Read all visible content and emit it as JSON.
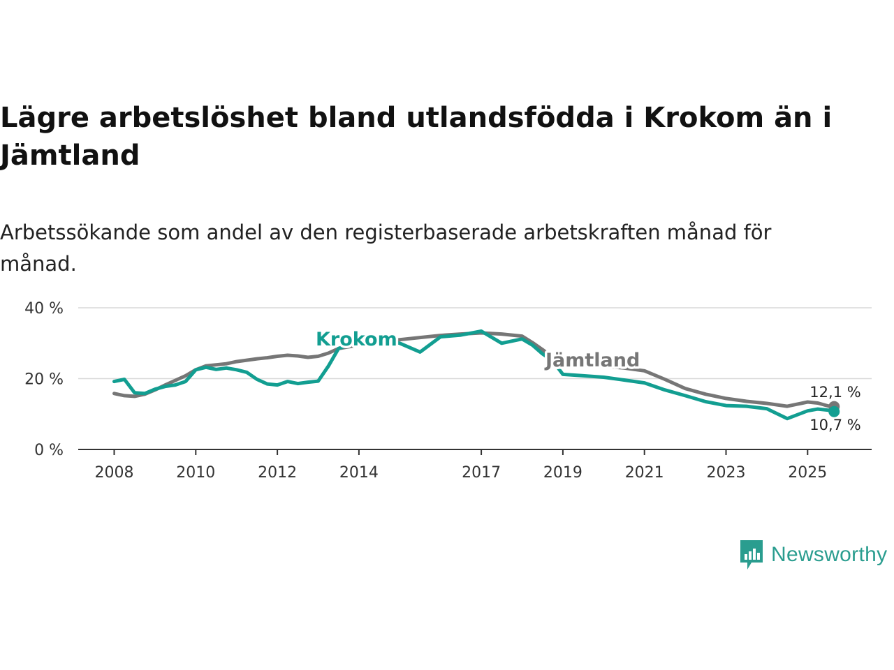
{
  "title": "Lägre arbetslöshet bland utlandsfödda i Krokom än i Jämtland",
  "subtitle": "Arbetssökande som andel av den registerbaserade arbetskraften månad för månad.",
  "brand": {
    "name": "Newsworthy"
  },
  "colors": {
    "krokom": "#129e91",
    "jamtland": "#767676",
    "grid": "#d9d9d9",
    "axis": "#333333"
  },
  "chart_data": {
    "type": "line",
    "title": "Lägre arbetslöshet bland utlandsfödda i Krokom än i Jämtland",
    "xlabel": "",
    "ylabel": "",
    "xlim": [
      2008.0,
      2026.5
    ],
    "ylim": [
      0,
      40
    ],
    "x_ticks": [
      2008,
      2010,
      2012,
      2014,
      2017,
      2019,
      2021,
      2023,
      2025
    ],
    "x_tick_labels": [
      "2008",
      "2010",
      "2012",
      "2014",
      "2017",
      "2019",
      "2021",
      "2023",
      "2025"
    ],
    "y_ticks": [
      0,
      20,
      40
    ],
    "y_tick_labels": [
      "0 %",
      "20 %",
      "40 %"
    ],
    "grid": true,
    "series": [
      {
        "name": "Jämtland",
        "label": "Jämtland",
        "end_label": "12,1 %",
        "x": [
          2008.0,
          2008.25,
          2008.5,
          2008.75,
          2009.0,
          2009.25,
          2009.5,
          2009.75,
          2010.0,
          2010.25,
          2010.5,
          2010.75,
          2011.0,
          2011.25,
          2011.5,
          2011.75,
          2012.0,
          2012.25,
          2012.5,
          2012.75,
          2013.0,
          2013.25,
          2013.5,
          2014.0,
          2014.5,
          2015.0,
          2015.5,
          2016.0,
          2016.5,
          2017.0,
          2017.5,
          2018.0,
          2018.25,
          2018.5,
          2018.75,
          2019.0,
          2019.5,
          2020.0,
          2020.5,
          2021.0,
          2021.5,
          2022.0,
          2022.5,
          2023.0,
          2023.5,
          2024.0,
          2024.5,
          2025.0,
          2025.25,
          2025.5,
          2025.65
        ],
        "values": [
          15.8,
          15.2,
          15.0,
          15.6,
          16.8,
          18.2,
          19.5,
          20.8,
          22.5,
          23.6,
          23.9,
          24.2,
          24.8,
          25.2,
          25.6,
          25.9,
          26.3,
          26.6,
          26.4,
          26.0,
          26.3,
          27.2,
          28.5,
          29.5,
          30.2,
          31.0,
          31.6,
          32.2,
          32.6,
          32.9,
          32.6,
          32.0,
          30.2,
          28.2,
          26.0,
          24.5,
          23.8,
          23.5,
          23.0,
          22.2,
          19.8,
          17.2,
          15.6,
          14.4,
          13.6,
          13.0,
          12.2,
          13.4,
          13.1,
          12.3,
          12.1
        ]
      },
      {
        "name": "Krokom",
        "label": "Krokom",
        "end_label": "10,7 %",
        "x": [
          2008.0,
          2008.25,
          2008.5,
          2008.75,
          2009.0,
          2009.25,
          2009.5,
          2009.75,
          2010.0,
          2010.25,
          2010.5,
          2010.75,
          2011.0,
          2011.25,
          2011.5,
          2011.75,
          2012.0,
          2012.25,
          2012.5,
          2012.75,
          2013.0,
          2013.25,
          2013.5,
          2014.0,
          2014.5,
          2015.0,
          2015.5,
          2016.0,
          2016.5,
          2017.0,
          2017.5,
          2018.0,
          2018.25,
          2018.5,
          2018.75,
          2019.0,
          2019.5,
          2020.0,
          2020.5,
          2021.0,
          2021.5,
          2022.0,
          2022.5,
          2023.0,
          2023.5,
          2024.0,
          2024.5,
          2025.0,
          2025.25,
          2025.5,
          2025.65
        ],
        "values": [
          19.2,
          19.8,
          16.0,
          15.8,
          17.0,
          17.8,
          18.2,
          19.2,
          22.5,
          23.2,
          22.6,
          23.0,
          22.5,
          21.8,
          19.8,
          18.5,
          18.2,
          19.2,
          18.6,
          19.0,
          19.3,
          23.5,
          28.5,
          30.6,
          31.2,
          30.0,
          27.5,
          31.8,
          32.3,
          33.4,
          30.0,
          31.2,
          29.5,
          27.0,
          25.0,
          21.2,
          20.8,
          20.4,
          19.6,
          18.8,
          16.8,
          15.2,
          13.5,
          12.4,
          12.2,
          11.5,
          8.7,
          10.9,
          11.4,
          11.1,
          10.7
        ]
      }
    ]
  }
}
